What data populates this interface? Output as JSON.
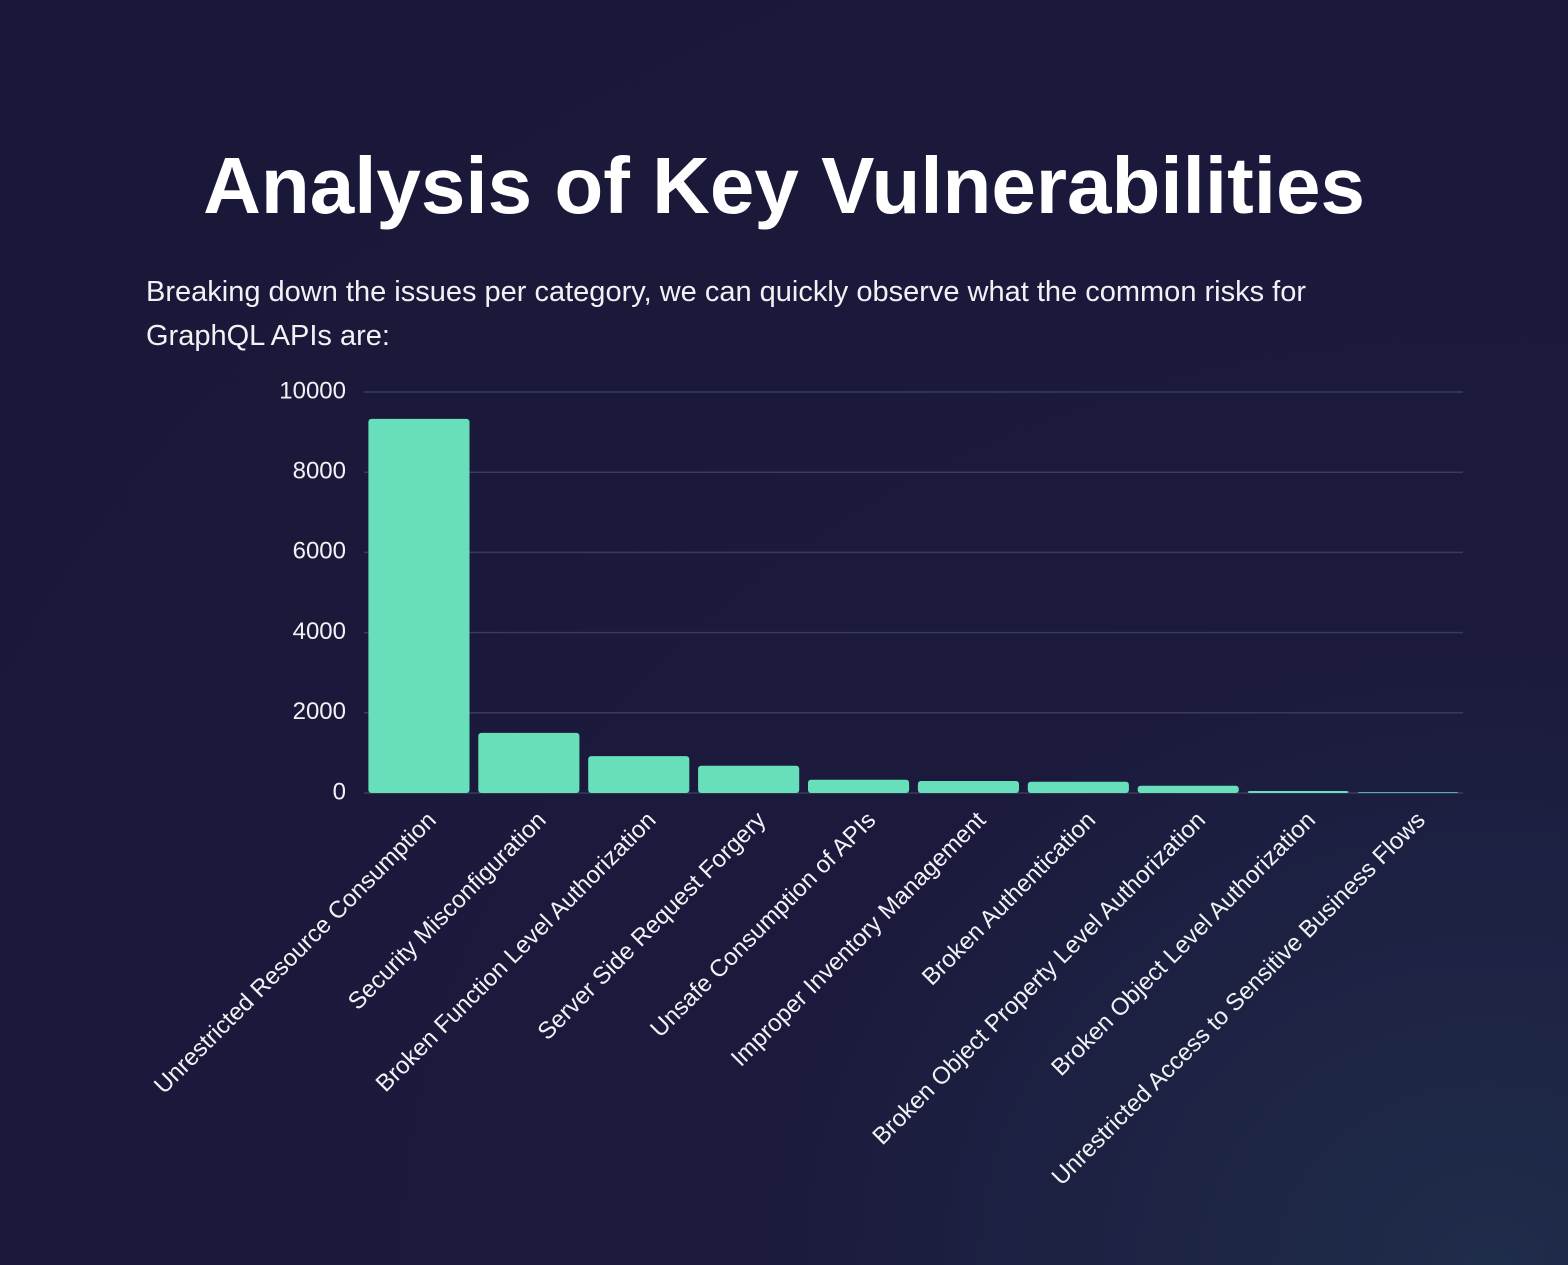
{
  "chart_data": {
    "type": "bar",
    "title": "Analysis of Key Vulnerabilities",
    "subtitle": "Breaking down the issues per category, we can quickly observe what the common risks for GraphQL APIs are:",
    "categories": [
      "Unrestricted Resource Consumption",
      "Security Misconfiguration",
      "Broken Function Level Authorization",
      "Server Side Request Forgery",
      "Unsafe Consumption of APIs",
      "Improper Inventory Management",
      "Broken Authentication",
      "Broken Object Property Level Authorization",
      "Broken Object Level Authorization",
      "Unrestricted Access to Sensitive Business Flows"
    ],
    "values": [
      9330,
      1500,
      920,
      680,
      330,
      300,
      280,
      180,
      50,
      20
    ],
    "color": "#66dfba",
    "ylim": [
      0,
      10000
    ],
    "yticks": [
      0,
      2000,
      4000,
      6000,
      8000,
      10000
    ],
    "grid": true
  }
}
